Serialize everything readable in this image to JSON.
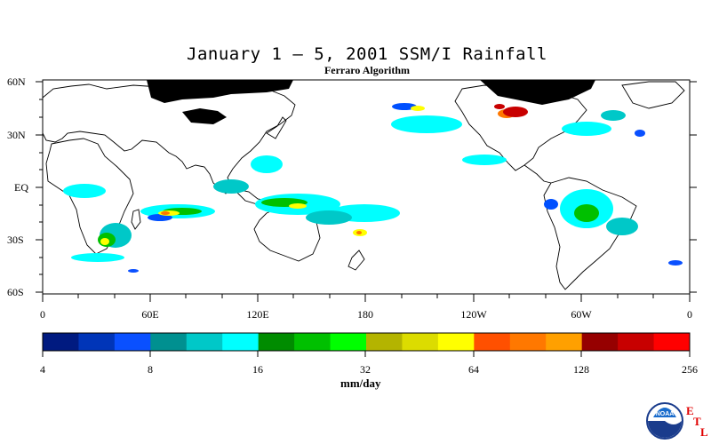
{
  "title": "January 1 – 5, 2001 SSM/I Rainfall",
  "subtitle": "Ferraro Algorithm",
  "map": {
    "lat_labels": [
      "60N",
      "30N",
      "EQ",
      "30S",
      "60S"
    ],
    "lon_labels": [
      "0",
      "60E",
      "120E",
      "180",
      "120W",
      "60W",
      "0"
    ],
    "background": "#ffffff",
    "no_data_color": "#000000"
  },
  "colorbar": {
    "units": "mm/day",
    "tick_labels": [
      "4",
      "8",
      "16",
      "32",
      "64",
      "128",
      "256"
    ],
    "colors": [
      "#001a80",
      "#0035b8",
      "#0a50ff",
      "#009090",
      "#00c8c8",
      "#00ffff",
      "#008c00",
      "#00c000",
      "#00ff00",
      "#b4b400",
      "#dcdc00",
      "#ffff00",
      "#ff5000",
      "#ff7800",
      "#ffa000",
      "#960000",
      "#c80000",
      "#ff0000"
    ]
  },
  "logo": {
    "name": "NOAA",
    "letters": [
      "E",
      "T",
      "L"
    ]
  }
}
